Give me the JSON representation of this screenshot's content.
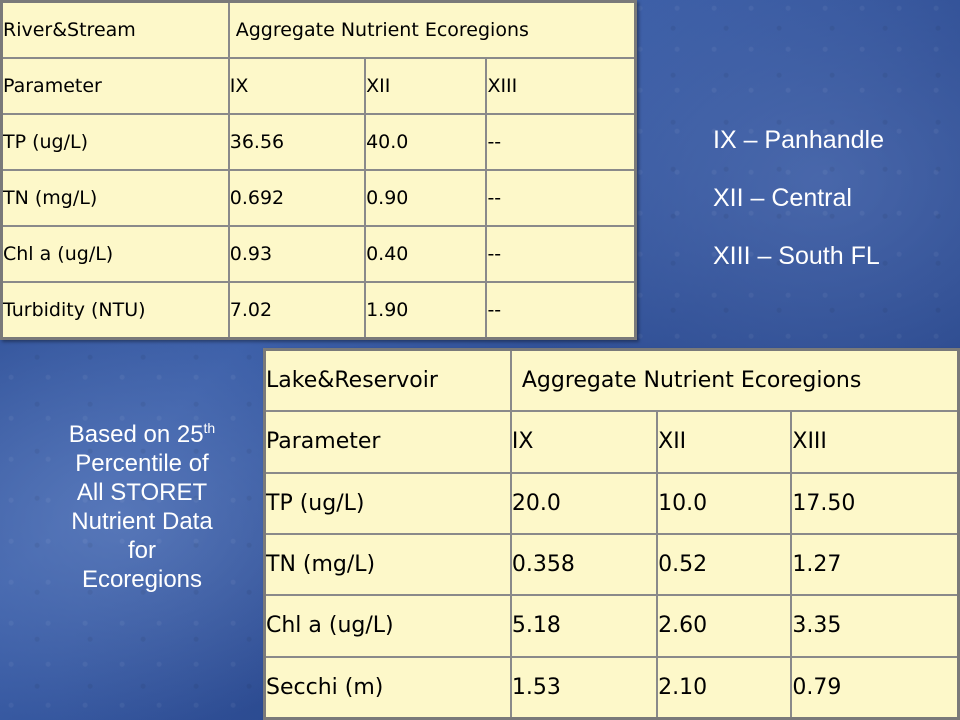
{
  "river_table": {
    "header": [
      "River&Stream",
      "Aggregate Nutrient Ecoregions"
    ],
    "columns": [
      "Parameter",
      "IX",
      "XII",
      "XIII"
    ],
    "rows": [
      [
        "TP (ug/L)",
        "36.56",
        "40.0",
        "--"
      ],
      [
        "TN (mg/L)",
        "0.692",
        "0.90",
        "--"
      ],
      [
        "Chl a (ug/L)",
        "0.93",
        "0.40",
        "--"
      ],
      [
        "Turbidity (NTU)",
        "7.02",
        "1.90",
        "--"
      ]
    ]
  },
  "lake_table": {
    "header": [
      "Lake&Reservoir",
      "Aggregate Nutrient Ecoregions"
    ],
    "columns": [
      "Parameter",
      "IX",
      "XII",
      "XIII"
    ],
    "rows": [
      [
        "TP (ug/L)",
        "20.0",
        "10.0",
        "17.50"
      ],
      [
        "TN (mg/L)",
        "0.358",
        "0.52",
        "1.27"
      ],
      [
        "Chl a (ug/L)",
        "5.18",
        "2.60",
        "3.35"
      ],
      [
        "Secchi (m)",
        "1.53",
        "2.10",
        "0.79"
      ]
    ]
  },
  "legend": [
    "IX – Panhandle",
    "XII – Central",
    "XIII – South FL"
  ],
  "note": {
    "line1_pre": "Based on 25",
    "line1_sup": "th",
    "rest": [
      "Percentile of",
      "All STORET",
      "Nutrient Data",
      "for",
      "Ecoregions"
    ]
  },
  "colors": {
    "table_fill": "#fdf8c9",
    "background": "#2b4a8e",
    "text_light": "#ffffff"
  }
}
